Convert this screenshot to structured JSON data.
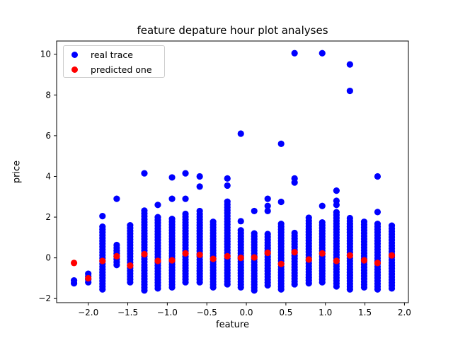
{
  "chart_data": {
    "type": "scatter",
    "title": "feature depature hour plot analyses",
    "xlabel": "feature",
    "ylabel": "price",
    "xlim": [
      -2.4,
      2.05
    ],
    "ylim": [
      -2.2,
      10.65
    ],
    "x_ticks": [
      -2.0,
      -1.5,
      -1.0,
      -0.5,
      0.0,
      0.5,
      1.0,
      1.5,
      2.0
    ],
    "y_ticks": [
      -2,
      0,
      2,
      4,
      6,
      8,
      10
    ],
    "grid": false,
    "legend_placement": "top-left",
    "series": [
      {
        "name": "real trace",
        "color": "#0000ff",
        "columns": [
          {
            "x": -2.18,
            "min": -1.25,
            "max": -1.05,
            "outliers": []
          },
          {
            "x": -2.0,
            "min": -1.2,
            "max": -0.65,
            "outliers": []
          },
          {
            "x": -1.82,
            "min": -1.55,
            "max": 1.6,
            "outliers": [
              2.05
            ]
          },
          {
            "x": -1.64,
            "min": -0.35,
            "max": 0.7,
            "outliers": [
              2.9
            ]
          },
          {
            "x": -1.47,
            "min": -1.2,
            "max": 1.6,
            "outliers": []
          },
          {
            "x": -1.29,
            "min": -1.6,
            "max": 2.45,
            "outliers": [
              4.15
            ]
          },
          {
            "x": -1.12,
            "min": -1.5,
            "max": 2.0,
            "outliers": [
              2.6
            ]
          },
          {
            "x": -0.94,
            "min": -1.45,
            "max": 2.0,
            "outliers": [
              2.9,
              3.95
            ]
          },
          {
            "x": -0.77,
            "min": -1.2,
            "max": 2.2,
            "outliers": [
              2.9,
              4.15
            ]
          },
          {
            "x": -0.59,
            "min": -1.2,
            "max": 2.35,
            "outliers": [
              3.5,
              4.0
            ]
          },
          {
            "x": -0.42,
            "min": -1.45,
            "max": 1.8,
            "outliers": []
          },
          {
            "x": -0.24,
            "min": -1.3,
            "max": 2.8,
            "outliers": [
              3.55,
              3.9
            ]
          },
          {
            "x": -0.07,
            "min": -1.45,
            "max": 1.45,
            "outliers": [
              1.8,
              6.1
            ]
          },
          {
            "x": 0.1,
            "min": -1.6,
            "max": 1.3,
            "outliers": [
              2.3
            ]
          },
          {
            "x": 0.27,
            "min": -1.35,
            "max": 1.3,
            "outliers": [
              2.3,
              2.55,
              2.9
            ]
          },
          {
            "x": 0.44,
            "min": -1.55,
            "max": 1.7,
            "outliers": [
              2.75,
              5.6
            ]
          },
          {
            "x": 0.61,
            "min": -1.3,
            "max": 1.3,
            "outliers": [
              3.7,
              3.9,
              10.05
            ]
          },
          {
            "x": 0.79,
            "min": -1.25,
            "max": 2.05,
            "outliers": []
          },
          {
            "x": 0.96,
            "min": -1.2,
            "max": 1.85,
            "outliers": [
              2.55,
              10.05
            ]
          },
          {
            "x": 1.14,
            "min": -1.4,
            "max": 2.3,
            "outliers": [
              2.6,
              2.8,
              3.3
            ]
          },
          {
            "x": 1.31,
            "min": -1.55,
            "max": 2.05,
            "outliers": [
              8.2,
              9.5
            ]
          },
          {
            "x": 1.49,
            "min": -1.45,
            "max": 1.8,
            "outliers": []
          },
          {
            "x": 1.66,
            "min": -1.55,
            "max": 1.75,
            "outliers": [
              2.25,
              4.0
            ]
          },
          {
            "x": 1.84,
            "min": -1.5,
            "max": 1.7,
            "outliers": []
          }
        ]
      },
      {
        "name": "predicted one",
        "color": "#ff0000",
        "x": [
          -2.18,
          -2.0,
          -1.82,
          -1.64,
          -1.47,
          -1.29,
          -1.12,
          -0.94,
          -0.77,
          -0.59,
          -0.42,
          -0.24,
          -0.07,
          0.1,
          0.27,
          0.44,
          0.61,
          0.79,
          0.96,
          1.14,
          1.31,
          1.49,
          1.66,
          1.84
        ],
        "y": [
          -0.25,
          -1.0,
          -0.15,
          0.08,
          -0.38,
          0.18,
          -0.15,
          -0.12,
          0.22,
          0.15,
          -0.05,
          0.08,
          0.0,
          0.02,
          0.25,
          -0.3,
          0.28,
          -0.08,
          0.22,
          -0.15,
          0.12,
          -0.12,
          -0.25,
          0.12
        ]
      }
    ]
  }
}
